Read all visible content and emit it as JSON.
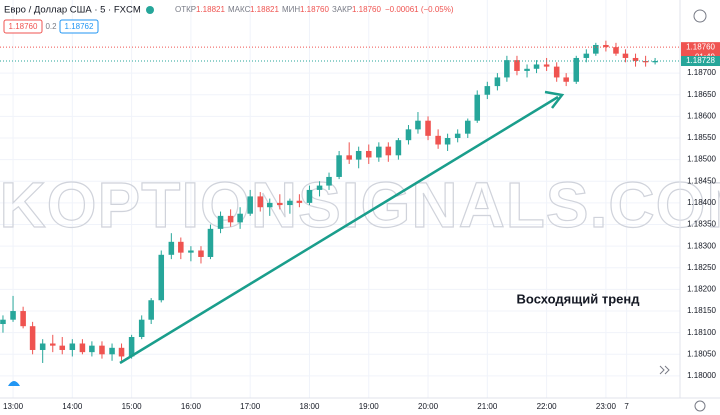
{
  "chart_data": {
    "type": "candlestick",
    "header": {
      "symbol": "Евро / Доллар США · 5 · FXCM",
      "open_label": "ОТКР",
      "open": "1.18821",
      "high_label": "МАКС",
      "high": "1.18821",
      "low_label": "МИН",
      "low": "1.18760",
      "close_label": "ЗАКР",
      "close": "1.18760",
      "change": "−0.00061 (−0.05%)",
      "sell": "1.18760",
      "spread": "0.2",
      "buy": "1.18762"
    },
    "watermark": "WIKOPTIONSIGNALS.COM",
    "annotation": "Восходящий тренд",
    "up_color": "#26a69a",
    "down_color": "#ef5350",
    "x": [
      12.83,
      13,
      13.17,
      13.33,
      13.5,
      13.67,
      13.83,
      14,
      14.17,
      14.33,
      14.5,
      14.67,
      14.83,
      15,
      15.17,
      15.33,
      15.5,
      15.67,
      15.83,
      16,
      16.17,
      16.33,
      16.5,
      16.67,
      16.83,
      17,
      17.17,
      17.33,
      17.5,
      17.67,
      17.83,
      18,
      18.17,
      18.33,
      18.5,
      18.67,
      18.83,
      19,
      19.17,
      19.33,
      19.5,
      19.67,
      19.83,
      20,
      20.17,
      20.33,
      20.5,
      20.67,
      20.83,
      21,
      21.17,
      21.33,
      21.5,
      21.67,
      21.83,
      22,
      22.17,
      22.33,
      22.5,
      22.67,
      22.83,
      23,
      23.17,
      23.33,
      23.5,
      23.67,
      23.83
    ],
    "open": [
      1.1812,
      1.1813,
      1.1815,
      1.18115,
      1.1806,
      1.18075,
      1.1807,
      1.1806,
      1.18075,
      1.18055,
      1.1807,
      1.1805,
      1.18065,
      1.18045,
      1.1809,
      1.1813,
      1.18175,
      1.1828,
      1.1831,
      1.18285,
      1.1829,
      1.18275,
      1.1834,
      1.1837,
      1.18355,
      1.18375,
      1.18415,
      1.1839,
      1.184,
      1.18395,
      1.18405,
      1.184,
      1.1843,
      1.1844,
      1.1846,
      1.1851,
      1.185,
      1.1852,
      1.18505,
      1.1853,
      1.1851,
      1.18545,
      1.1857,
      1.1859,
      1.18555,
      1.18535,
      1.1855,
      1.1856,
      1.1859,
      1.1865,
      1.1867,
      1.1869,
      1.1873,
      1.18705,
      1.1871,
      1.1872,
      1.18715,
      1.1869,
      1.1868,
      1.18735,
      1.18745,
      1.18765,
      1.1876,
      1.18745,
      1.18735,
      1.18728,
      1.18725
    ],
    "high": [
      1.1814,
      1.18185,
      1.1816,
      1.18125,
      1.18085,
      1.18095,
      1.1809,
      1.18085,
      1.18085,
      1.1808,
      1.1808,
      1.18075,
      1.18075,
      1.18095,
      1.1814,
      1.1818,
      1.1829,
      1.1833,
      1.1832,
      1.183,
      1.183,
      1.1835,
      1.1838,
      1.18385,
      1.1839,
      1.1843,
      1.18425,
      1.1841,
      1.1842,
      1.1841,
      1.1842,
      1.1844,
      1.1845,
      1.1847,
      1.1852,
      1.1854,
      1.1853,
      1.18535,
      1.1854,
      1.1854,
      1.1855,
      1.1858,
      1.1861,
      1.186,
      1.1857,
      1.1856,
      1.1857,
      1.18595,
      1.1866,
      1.1868,
      1.187,
      1.1874,
      1.1874,
      1.1872,
      1.1873,
      1.18735,
      1.18725,
      1.187,
      1.1874,
      1.18755,
      1.1877,
      1.18775,
      1.1877,
      1.18755,
      1.18745,
      1.1874,
      1.18735
    ],
    "low": [
      1.181,
      1.18125,
      1.1811,
      1.1805,
      1.1803,
      1.18055,
      1.1805,
      1.18045,
      1.1805,
      1.18045,
      1.1804,
      1.18035,
      1.18035,
      1.1804,
      1.18085,
      1.1812,
      1.1817,
      1.1827,
      1.1827,
      1.18265,
      1.1826,
      1.1827,
      1.1833,
      1.18345,
      1.1834,
      1.1837,
      1.1838,
      1.1837,
      1.18385,
      1.18375,
      1.1839,
      1.18395,
      1.18415,
      1.1843,
      1.18455,
      1.1849,
      1.1848,
      1.1849,
      1.18495,
      1.18495,
      1.185,
      1.18535,
      1.1856,
      1.18545,
      1.18525,
      1.1852,
      1.1854,
      1.1855,
      1.18585,
      1.1864,
      1.1866,
      1.1868,
      1.18695,
      1.1869,
      1.187,
      1.18705,
      1.1868,
      1.1867,
      1.18675,
      1.18725,
      1.1874,
      1.1875,
      1.1874,
      1.18725,
      1.18715,
      1.18715,
      1.1872
    ],
    "close": [
      1.1813,
      1.1815,
      1.18115,
      1.1806,
      1.18075,
      1.1807,
      1.1806,
      1.18075,
      1.18055,
      1.1807,
      1.1805,
      1.18065,
      1.18045,
      1.1809,
      1.1813,
      1.18175,
      1.1828,
      1.1831,
      1.18285,
      1.1829,
      1.18275,
      1.1834,
      1.1837,
      1.18355,
      1.18375,
      1.18415,
      1.1839,
      1.184,
      1.18395,
      1.18405,
      1.184,
      1.1843,
      1.1844,
      1.1846,
      1.1851,
      1.185,
      1.1852,
      1.18505,
      1.1853,
      1.1851,
      1.18545,
      1.1857,
      1.1859,
      1.18555,
      1.18535,
      1.1855,
      1.1856,
      1.1859,
      1.1865,
      1.1867,
      1.1869,
      1.1873,
      1.18705,
      1.1871,
      1.1872,
      1.18715,
      1.1869,
      1.1868,
      1.18735,
      1.18745,
      1.18765,
      1.1876,
      1.18745,
      1.18735,
      1.18728,
      1.18725,
      1.18728
    ],
    "xlim": [
      12.78,
      24.25
    ],
    "xticks": [
      {
        "value": 13,
        "label": "13:00"
      },
      {
        "value": 14,
        "label": "14:00"
      },
      {
        "value": 15,
        "label": "15:00"
      },
      {
        "value": 16,
        "label": "16:00"
      },
      {
        "value": 17,
        "label": "17:00"
      },
      {
        "value": 18,
        "label": "18:00"
      },
      {
        "value": 19,
        "label": "19:00"
      },
      {
        "value": 20,
        "label": "20:00"
      },
      {
        "value": 21,
        "label": "21:00"
      },
      {
        "value": 22,
        "label": "22:00"
      },
      {
        "value": 23,
        "label": "23:00"
      },
      {
        "value": 23.35,
        "label": "7"
      }
    ],
    "ylim": [
      1.17949,
      1.18869
    ],
    "yticks": [
      {
        "value": 1.18,
        "label": "1.18000"
      },
      {
        "value": 1.1805,
        "label": "1.18050"
      },
      {
        "value": 1.181,
        "label": "1.18100"
      },
      {
        "value": 1.1815,
        "label": "1.18150"
      },
      {
        "value": 1.182,
        "label": "1.18200"
      },
      {
        "value": 1.1825,
        "label": "1.18250"
      },
      {
        "value": 1.183,
        "label": "1.18300"
      },
      {
        "value": 1.1835,
        "label": "1.18350"
      },
      {
        "value": 1.184,
        "label": "1.18400"
      },
      {
        "value": 1.1845,
        "label": "1.18450"
      },
      {
        "value": 1.185,
        "label": "1.18500"
      },
      {
        "value": 1.1855,
        "label": "1.18550"
      },
      {
        "value": 1.186,
        "label": "1.18600"
      },
      {
        "value": 1.1865,
        "label": "1.18650"
      },
      {
        "value": 1.187,
        "label": "1.18700"
      }
    ],
    "grid": true,
    "price_tags": [
      {
        "value": 1.1876,
        "label": "1.18760",
        "timer": "01:49",
        "color": "#ef5350"
      },
      {
        "value": 1.18728,
        "label": "1.18728",
        "color": "#26a69a"
      }
    ]
  }
}
